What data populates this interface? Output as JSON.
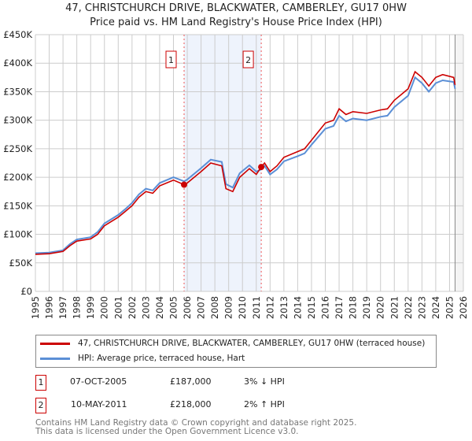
{
  "title": "47, CHRISTCHURCH DRIVE, BLACKWATER, CAMBERLEY, GU17 0HW",
  "subtitle": "Price paid vs. HM Land Registry's House Price Index (HPI)",
  "chart_data": {
    "type": "line",
    "ylim": [
      0,
      450000
    ],
    "xlim": [
      1995,
      2026
    ],
    "yticks": [
      {
        "v": 0,
        "label": "£0"
      },
      {
        "v": 50000,
        "label": "£50K"
      },
      {
        "v": 100000,
        "label": "£100K"
      },
      {
        "v": 150000,
        "label": "£150K"
      },
      {
        "v": 200000,
        "label": "£200K"
      },
      {
        "v": 250000,
        "label": "£250K"
      },
      {
        "v": 300000,
        "label": "£300K"
      },
      {
        "v": 350000,
        "label": "£350K"
      },
      {
        "v": 400000,
        "label": "£400K"
      },
      {
        "v": 450000,
        "label": "£450K"
      }
    ],
    "xticks": [
      "1995",
      "1996",
      "1997",
      "1998",
      "1999",
      "2000",
      "2001",
      "2002",
      "2003",
      "2004",
      "2005",
      "2006",
      "2007",
      "2008",
      "2009",
      "2010",
      "2011",
      "2012",
      "2013",
      "2014",
      "2015",
      "2016",
      "2017",
      "2018",
      "2019",
      "2020",
      "2021",
      "2022",
      "2023",
      "2024",
      "2025",
      "2026"
    ],
    "colors": {
      "price": "#cc0000",
      "hpi": "#5b8fd6",
      "shade": "#eef3fc"
    },
    "series": [
      {
        "name": "47, CHRISTCHURCH DRIVE, BLACKWATER, CAMBERLEY, GU17 0HW (terraced house)",
        "x": [
          1995,
          1996,
          1997,
          1997.5,
          1998,
          1999,
          1999.5,
          2000,
          2001,
          2001.5,
          2002,
          2002.5,
          2003,
          2003.5,
          2004,
          2005,
          2005.77,
          2006,
          2007,
          2007.7,
          2008.5,
          2008.8,
          2009.3,
          2009.8,
          2010.5,
          2011,
          2011.36,
          2011.6,
          2012,
          2012.5,
          2013,
          2014,
          2014.5,
          2015,
          2016,
          2016.6,
          2017,
          2017.5,
          2018,
          2019,
          2020,
          2020.5,
          2021,
          2021.5,
          2022,
          2022.5,
          2023,
          2023.5,
          2024,
          2024.5,
          2025.3,
          2025.4
        ],
        "values": [
          65000,
          66000,
          70000,
          80000,
          88000,
          92000,
          100000,
          115000,
          130000,
          140000,
          150000,
          165000,
          175000,
          172000,
          185000,
          195000,
          187000,
          190000,
          210000,
          225000,
          220000,
          180000,
          175000,
          200000,
          215000,
          205000,
          218000,
          225000,
          210000,
          220000,
          235000,
          245000,
          250000,
          265000,
          295000,
          300000,
          320000,
          310000,
          315000,
          312000,
          318000,
          320000,
          335000,
          345000,
          355000,
          385000,
          375000,
          360000,
          375000,
          380000,
          375000,
          362000
        ]
      },
      {
        "name": "HPI: Average price, terraced house, Hart",
        "x": [
          1995,
          1996,
          1997,
          1997.5,
          1998,
          1999,
          1999.5,
          2000,
          2001,
          2001.5,
          2002,
          2002.5,
          2003,
          2003.5,
          2004,
          2005,
          2005.77,
          2006,
          2007,
          2007.7,
          2008.5,
          2008.8,
          2009.3,
          2009.8,
          2010.5,
          2011,
          2011.36,
          2011.6,
          2012,
          2012.5,
          2013,
          2014,
          2014.5,
          2015,
          2016,
          2016.6,
          2017,
          2017.5,
          2018,
          2019,
          2020,
          2020.5,
          2021,
          2021.5,
          2022,
          2022.5,
          2023,
          2023.5,
          2024,
          2024.5,
          2025.3,
          2025.4
        ],
        "values": [
          67000,
          68000,
          72000,
          83000,
          91000,
          95000,
          104000,
          119000,
          134000,
          144000,
          155000,
          170000,
          180000,
          177000,
          190000,
          200000,
          193000,
          196000,
          216000,
          231000,
          227000,
          188000,
          182000,
          207000,
          221000,
          210000,
          214000,
          220000,
          205000,
          214000,
          228000,
          237000,
          242000,
          257000,
          285000,
          290000,
          308000,
          298000,
          303000,
          300000,
          306000,
          308000,
          323000,
          333000,
          343000,
          375000,
          365000,
          350000,
          365000,
          370000,
          367000,
          355000
        ]
      }
    ],
    "sales": [
      {
        "n": "1",
        "x": 2005.77,
        "v": 187000
      },
      {
        "n": "2",
        "x": 2011.36,
        "v": 218000
      }
    ]
  },
  "legend": {
    "price": "47, CHRISTCHURCH DRIVE, BLACKWATER, CAMBERLEY, GU17 0HW (terraced house)",
    "hpi": "HPI: Average price, terraced house, Hart"
  },
  "transactions": [
    {
      "n": "1",
      "date": "07-OCT-2005",
      "price": "£187,000",
      "hpi": "3% ↓ HPI"
    },
    {
      "n": "2",
      "date": "10-MAY-2011",
      "price": "£218,000",
      "hpi": "2% ↑ HPI"
    }
  ],
  "footer": {
    "line1": "Contains HM Land Registry data © Crown copyright and database right 2025.",
    "line2": "This data is licensed under the Open Government Licence v3.0."
  }
}
